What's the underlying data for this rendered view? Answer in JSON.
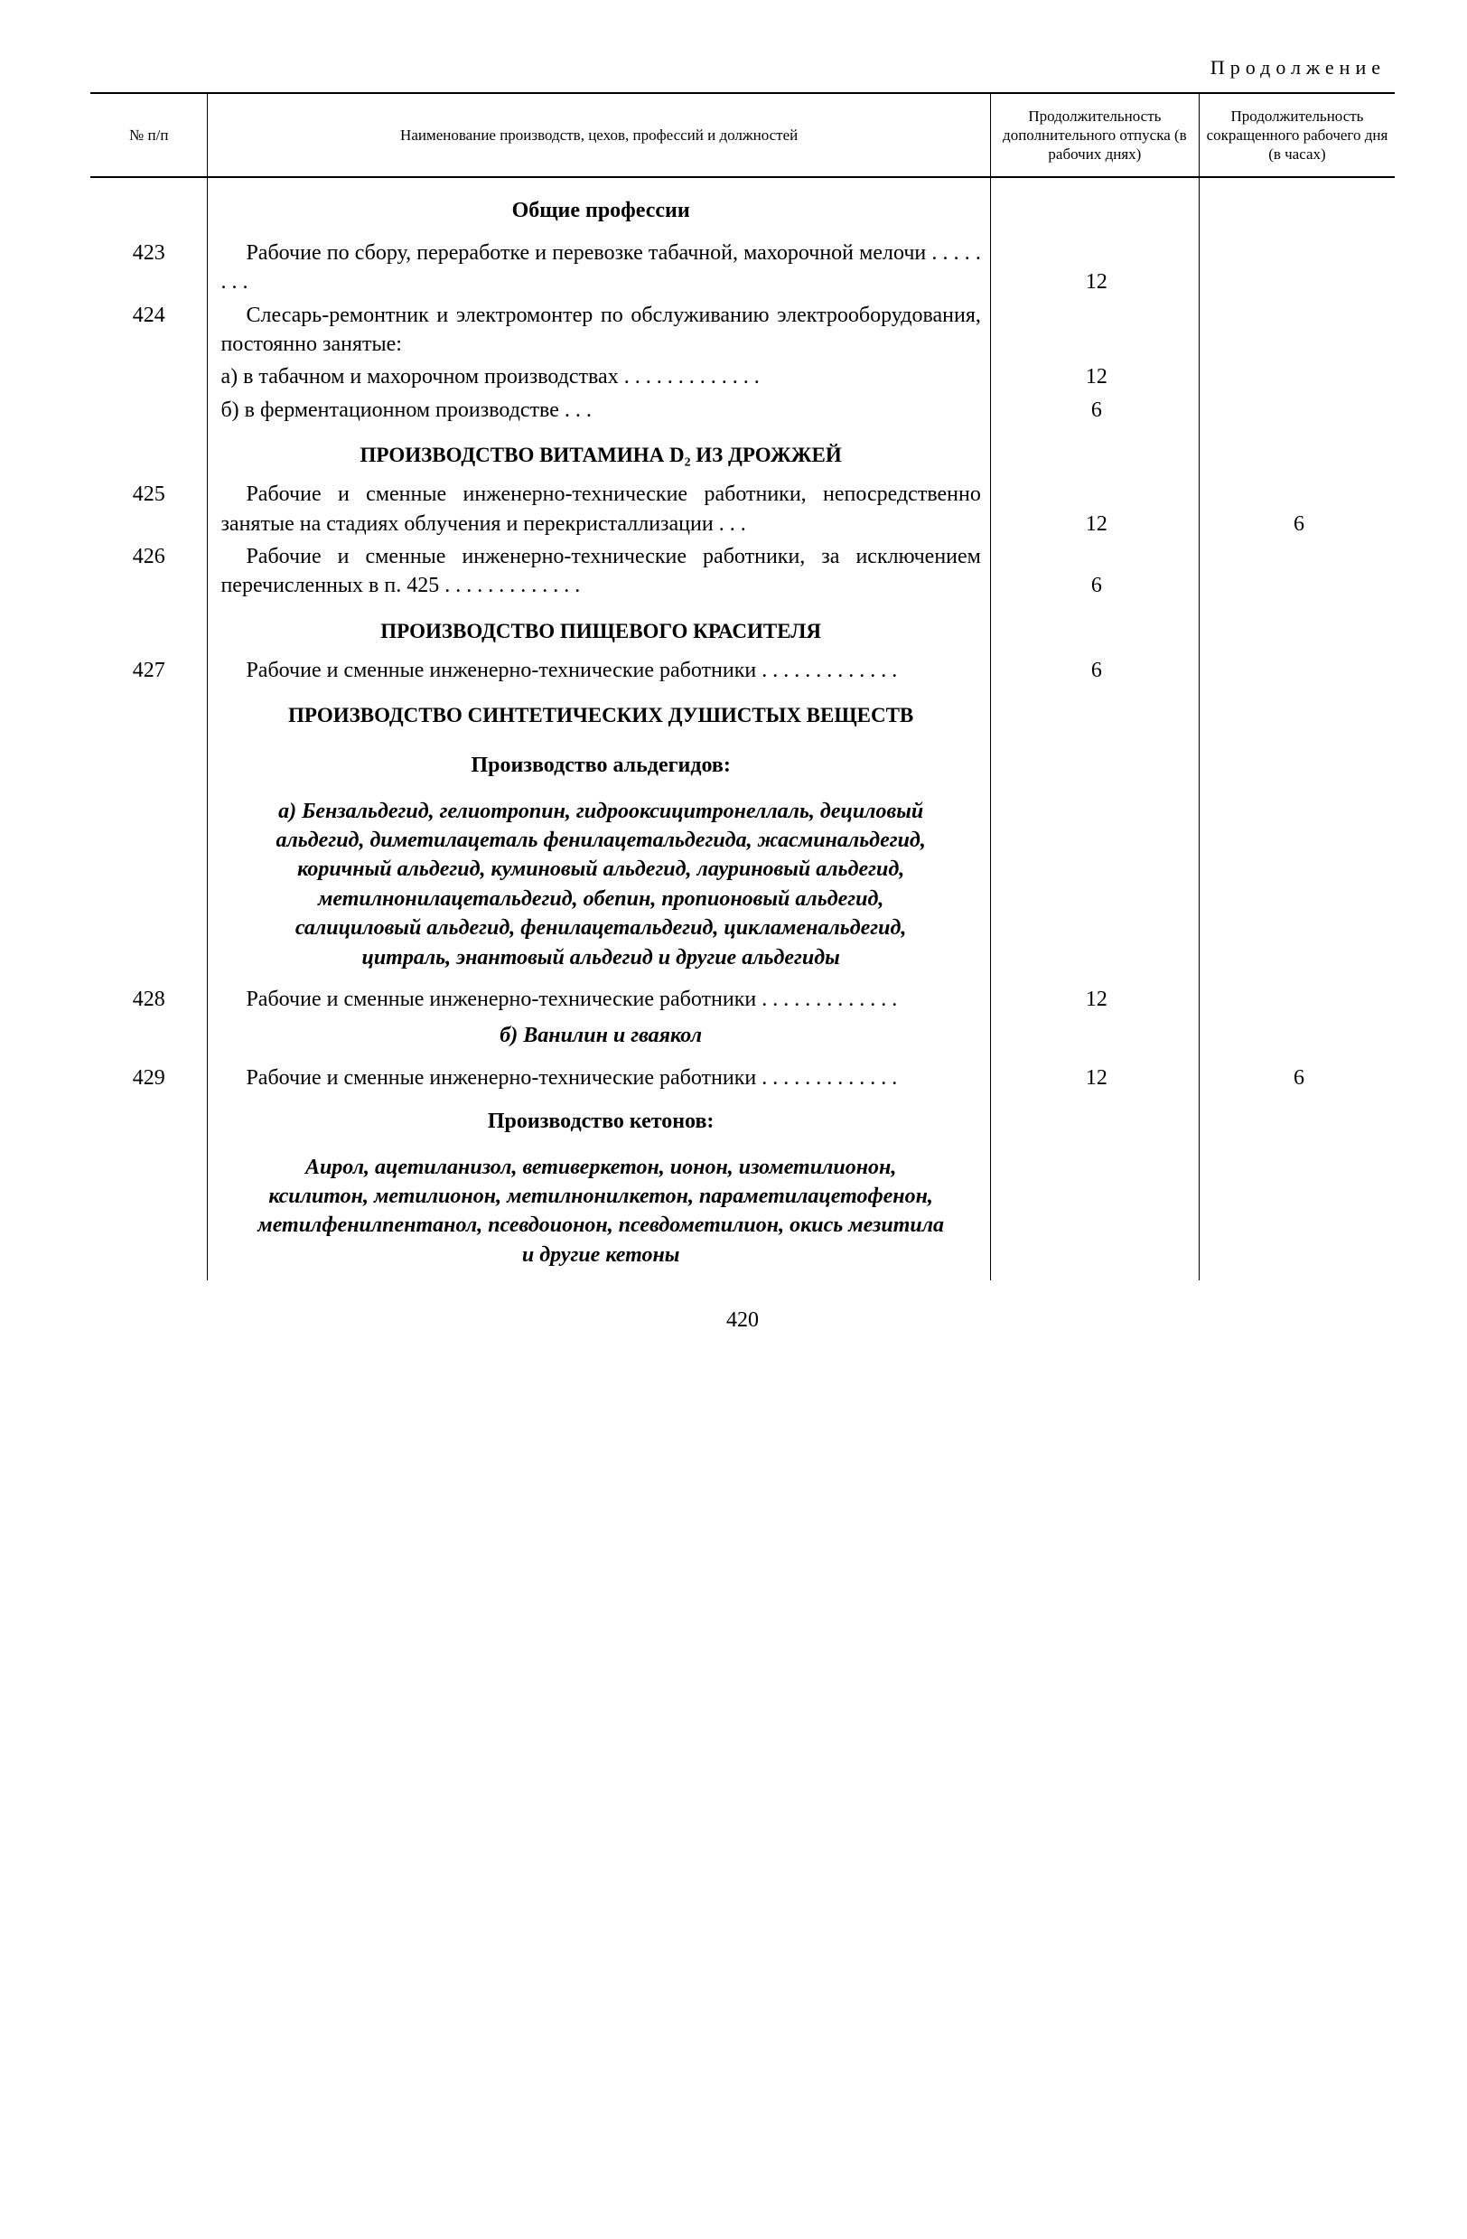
{
  "continuation": "Продолжение",
  "header": {
    "col_num": "№\nп/п",
    "col_desc": "Наименование производств, цехов,\nпрофессий и должностей",
    "col_leave": "Продолжи­тельность дополнитель­ного отпуска (в рабочих днях)",
    "col_hours": "Продолжи­тельность сокращен­ного рабо­чего дня (в часах)"
  },
  "rows": [
    {
      "type": "section",
      "text": "Общие профессии"
    },
    {
      "type": "entry",
      "num": "423",
      "text": "Рабочие по сбору, переработке и перевозке табачной, махорочной мелочи",
      "dots": "dots",
      "leave": "12",
      "hours": ""
    },
    {
      "type": "entry_open",
      "num": "424",
      "text": "Слесарь-ремонтник и электромонтер по обслуживанию электрооборудования, по­стоянно занятые:"
    },
    {
      "type": "sub",
      "text": "а) в табачном и махорочном производст­вах",
      "dots": "dots-long",
      "leave": "12",
      "hours": ""
    },
    {
      "type": "sub",
      "text": "б) в ферментационном производстве",
      "dots": "dots-short",
      "leave": "6",
      "hours": ""
    },
    {
      "type": "section_sm",
      "text": "ПРОИЗВОДСТВО ВИТАМИНА D₂ ИЗ ДРОЖЖЕЙ"
    },
    {
      "type": "entry",
      "num": "425",
      "text": "Рабочие и сменные инженерно-технические работники, непосредственно занятые на ста­диях облучения и перекристаллизации",
      "dots": "dots-short",
      "leave": "12",
      "hours": "6"
    },
    {
      "type": "entry",
      "num": "426",
      "text": "Рабочие и сменные инженерно-технические работники, за исключением перечисленных в п. 425",
      "dots": "dots-long",
      "leave": "6",
      "hours": ""
    },
    {
      "type": "section_sm",
      "text": "ПРОИЗВОДСТВО ПИЩЕВОГО КРАСИТЕЛЯ"
    },
    {
      "type": "entry",
      "num": "427",
      "text": "Рабочие и сменные инженерно-технические работники",
      "dots": "dots-long",
      "leave": "6",
      "hours": ""
    },
    {
      "type": "section_sm",
      "text": "ПРОИЗВОДСТВО СИНТЕТИЧЕСКИХ ДУШИСТЫХ ВЕЩЕСТВ"
    },
    {
      "type": "subhead",
      "text": "Производство альдегидов:"
    },
    {
      "type": "italic",
      "text": "а) Бензальдегид, гелиотропин, гидрооксицитронеллаль, дециловый альдегид, диметилацеталь фенил­ацетальдегида, жасминальдегид, коричный альдегид, куминовый альдегид, лауриновый альдегид, метилнонилацетальдегид, обепин, пропионовый альдегид, салициловый альдегид, фенилацетальдегид, цикламенальдегид, цитраль, энантовый альдегид и другие альдегиды"
    },
    {
      "type": "entry",
      "num": "428",
      "text": "Рабочие и сменные инженерно-технические работники",
      "dots": "dots-long",
      "leave": "12",
      "hours": ""
    },
    {
      "type": "italic_one",
      "text": "б) Ванилин и гваякол"
    },
    {
      "type": "entry",
      "num": "429",
      "text": "Рабочие и сменные инженерно-технические работники",
      "dots": "dots-long",
      "leave": "12",
      "hours": "6"
    },
    {
      "type": "subhead",
      "text": "Производство кетонов:"
    },
    {
      "type": "italic",
      "text": "Аирол, ацетиланизол, ветиверкетон, ионон, изометилионон, ксилитон, метилионон, метилнонилкетон, параметилацетофенон, метилфенил­пентанол, псевдоионон, псевдометилион, окись мезитила и другие кетоны"
    }
  ],
  "page_number": "420"
}
